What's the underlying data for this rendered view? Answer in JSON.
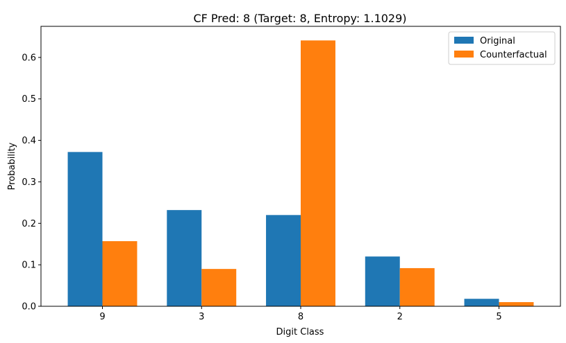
{
  "chart_data": {
    "type": "bar",
    "title": "CF Pred: 8 (Target: 8, Entropy: 1.1029)",
    "xlabel": "Digit Class",
    "ylabel": "Probability",
    "categories": [
      "9",
      "3",
      "8",
      "2",
      "5"
    ],
    "series": [
      {
        "name": "Original",
        "color": "#1f77b4",
        "values": [
          0.372,
          0.232,
          0.22,
          0.12,
          0.018
        ]
      },
      {
        "name": "Counterfactual",
        "color": "#ff7f0e",
        "values": [
          0.157,
          0.09,
          0.641,
          0.092,
          0.01
        ]
      }
    ],
    "ylim": [
      0,
      0.675
    ],
    "yticks": [
      0.0,
      0.1,
      0.2,
      0.3,
      0.4,
      0.5,
      0.6
    ],
    "ytick_labels": [
      "0.0",
      "0.1",
      "0.2",
      "0.3",
      "0.4",
      "0.5",
      "0.6"
    ],
    "grid": false,
    "legend_position": "top-right"
  }
}
